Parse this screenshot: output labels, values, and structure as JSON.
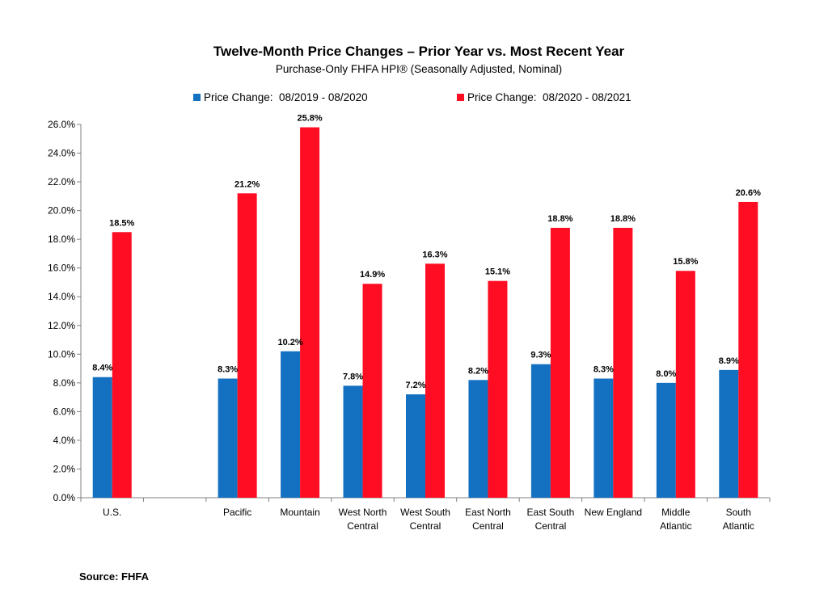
{
  "chart_data": {
    "type": "bar",
    "title": "Twelve-Month Price Changes – Prior Year vs. Most Recent Year",
    "subtitle": "Purchase-Only FHFA HPI® (Seasonally Adjusted, Nominal)",
    "categories": [
      [
        "U.S."
      ],
      [
        ""
      ],
      [
        "Pacific"
      ],
      [
        "Mountain"
      ],
      [
        "West North",
        "Central"
      ],
      [
        "West South",
        "Central"
      ],
      [
        "East North",
        "Central"
      ],
      [
        "East South",
        "Central"
      ],
      [
        "New England"
      ],
      [
        "Middle",
        "Atlantic"
      ],
      [
        "South",
        "Atlantic"
      ]
    ],
    "series": [
      {
        "name": "Price Change:  08/2019 - 08/2020",
        "color": "#1470C0",
        "values": [
          8.4,
          null,
          8.3,
          10.2,
          7.8,
          7.2,
          8.2,
          9.3,
          8.3,
          8.0,
          8.9
        ],
        "labels": [
          "8.4%",
          "",
          "8.3%",
          "10.2%",
          "7.8%",
          "7.2%",
          "8.2%",
          "9.3%",
          "8.3%",
          "8.0%",
          "8.9%"
        ]
      },
      {
        "name": "Price Change:  08/2020 - 08/2021",
        "color": "#FF0D22",
        "values": [
          18.5,
          null,
          21.2,
          25.8,
          14.9,
          16.3,
          15.1,
          18.8,
          18.8,
          15.8,
          20.6
        ],
        "labels": [
          "18.5%",
          "",
          "21.2%",
          "25.8%",
          "14.9%",
          "16.3%",
          "15.1%",
          "18.8%",
          "18.8%",
          "15.8%",
          "20.6%"
        ]
      }
    ],
    "ylim": [
      0,
      26
    ],
    "yticks": [
      0,
      2,
      4,
      6,
      8,
      10,
      12,
      14,
      16,
      18,
      20,
      22,
      24,
      26
    ],
    "ytick_labels": [
      "0.0%",
      "2.0%",
      "4.0%",
      "6.0%",
      "8.0%",
      "10.0%",
      "12.0%",
      "14.0%",
      "16.0%",
      "18.0%",
      "20.0%",
      "22.0%",
      "24.0%",
      "26.0%"
    ],
    "grid": false,
    "legend_position": "top"
  },
  "source": "Source: FHFA"
}
